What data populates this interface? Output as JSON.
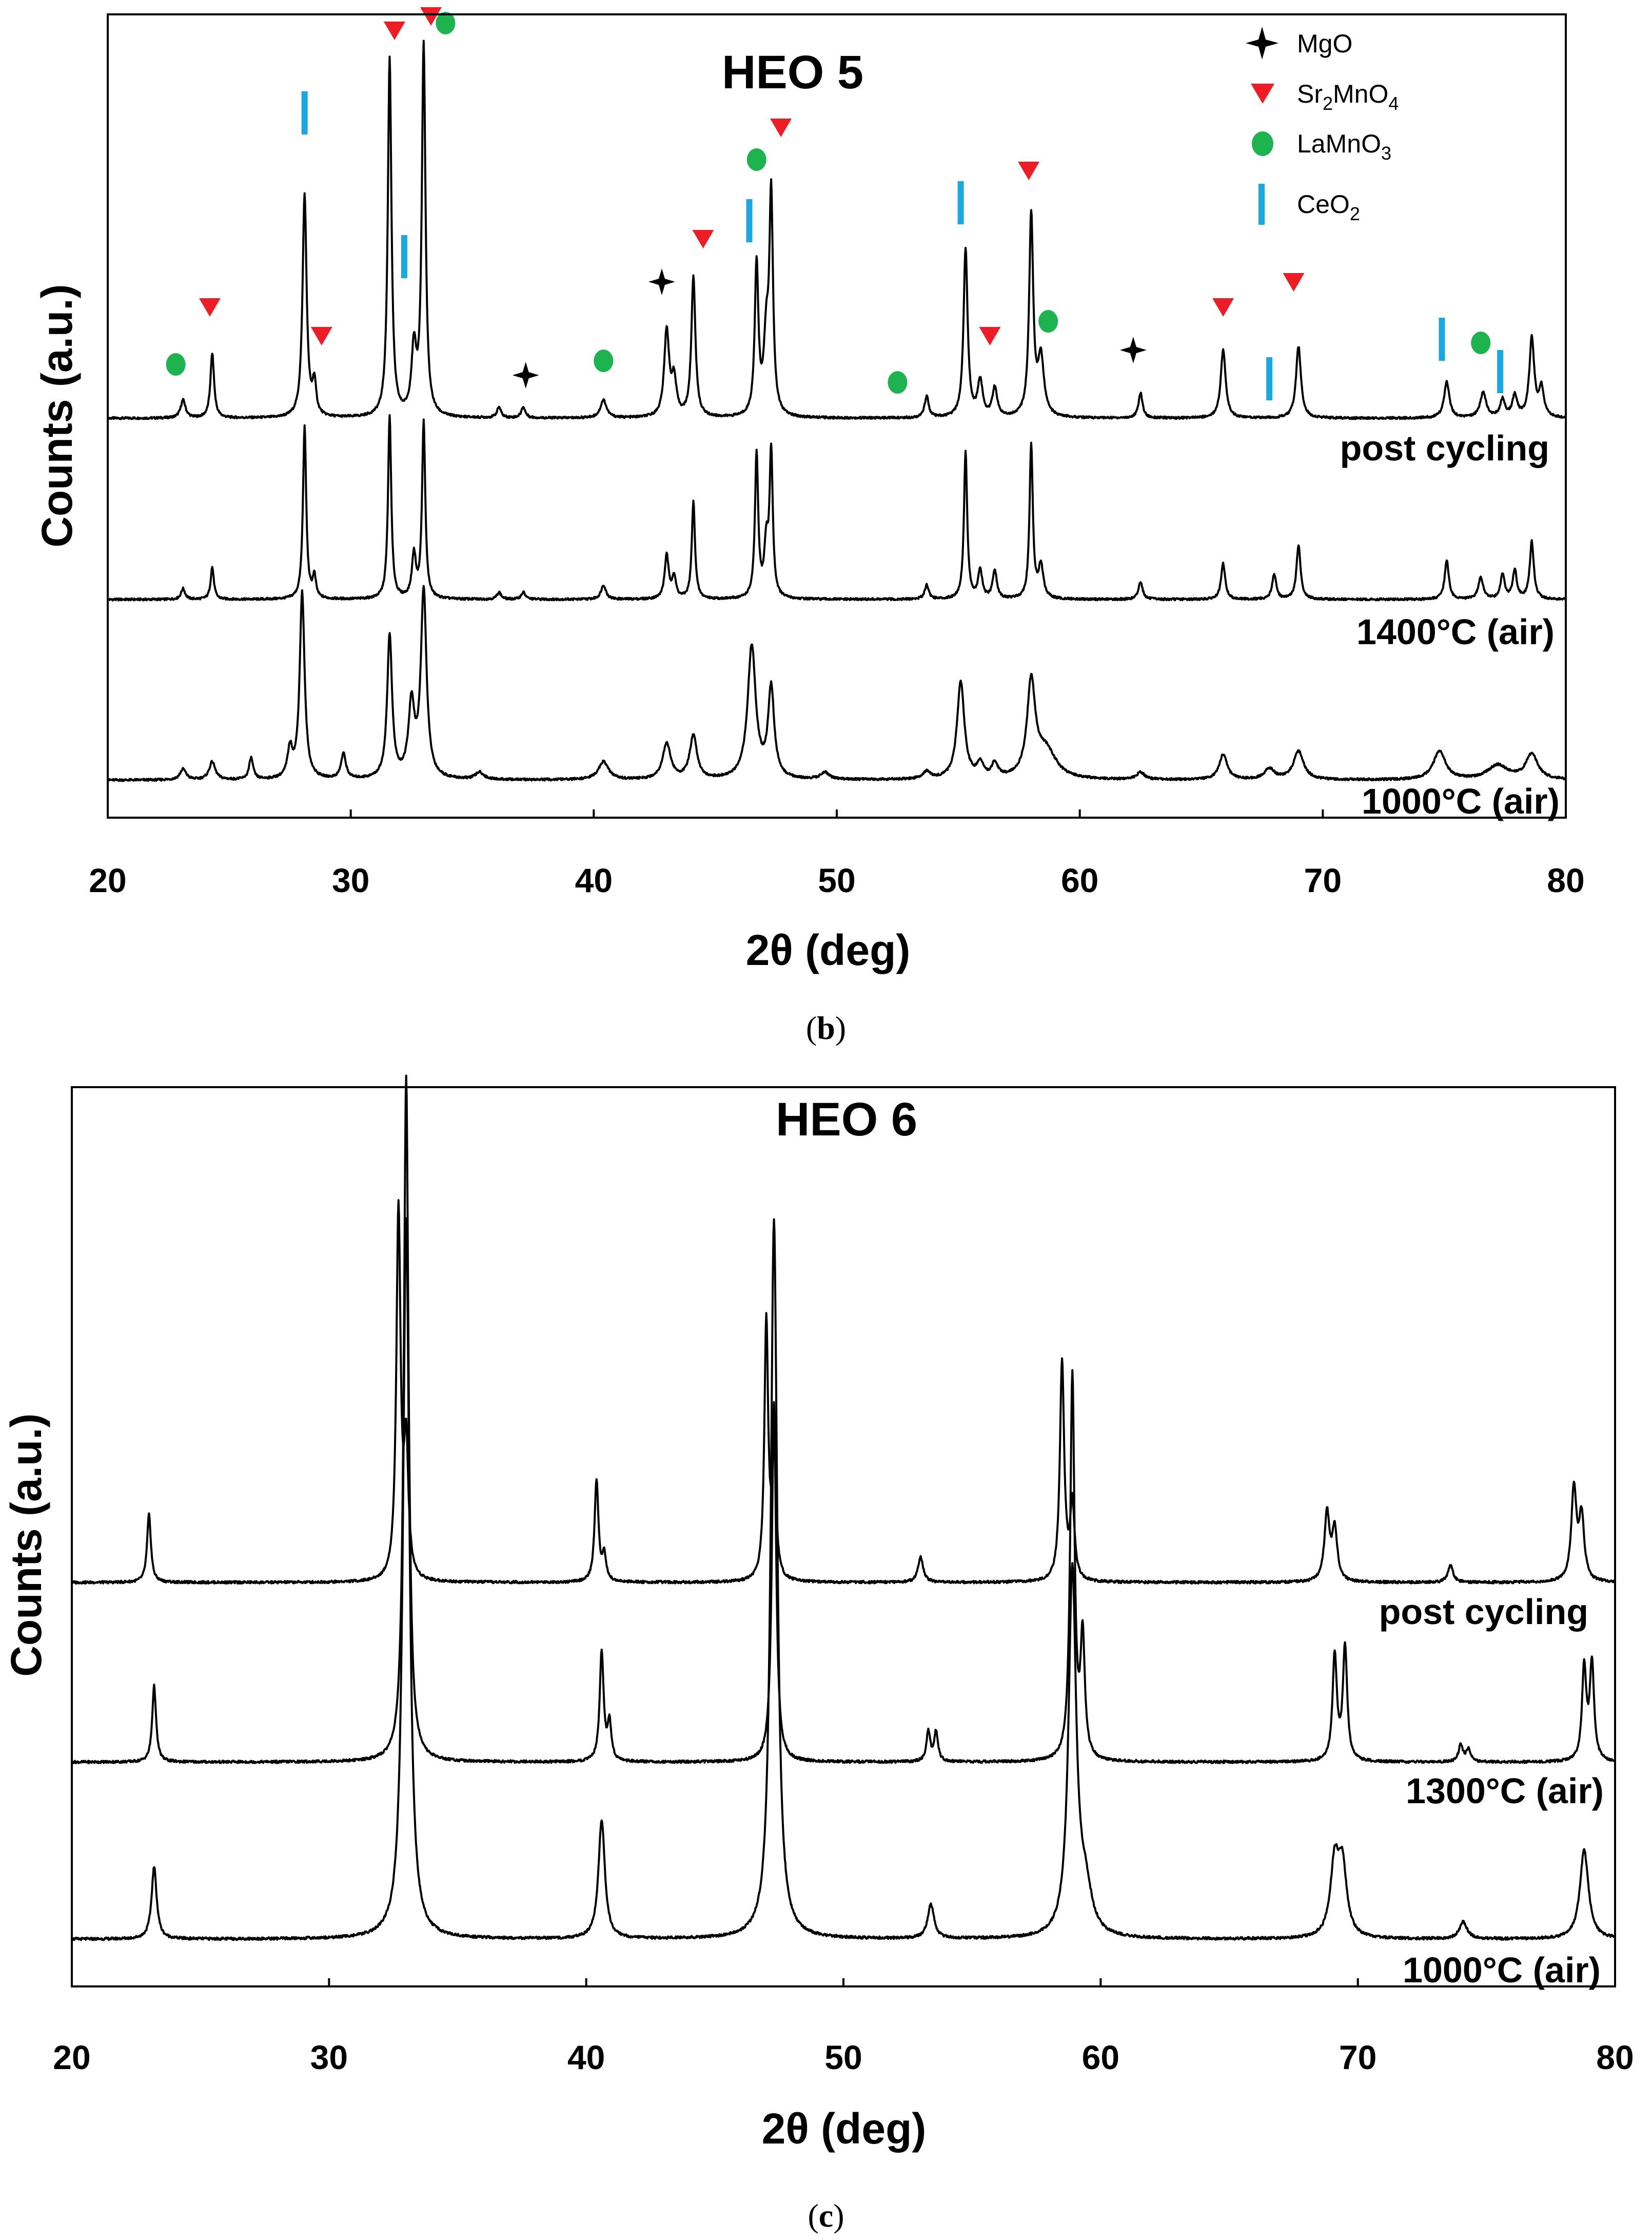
{
  "colors": {
    "sr2mno4": "#ee1c24",
    "lamno3": "#1db34f",
    "ceo2": "#1ba7e0",
    "mgo": "#000000",
    "line": "#000000"
  },
  "chart_data": [
    {
      "type": "line",
      "title": "HEO 5",
      "xlabel": "2θ (deg)",
      "ylabel": "Counts (a.u.)",
      "xlim": [
        20,
        80
      ],
      "xticks": [
        20,
        30,
        40,
        50,
        60,
        70,
        80
      ],
      "caption": {
        "open": "(",
        "letter": "b",
        "close": ")"
      },
      "legend": {
        "placement": "top-right",
        "entries": [
          {
            "marker": "star",
            "label": "MgO",
            "sub": "",
            "tail": ""
          },
          {
            "marker": "triangle",
            "label": "Sr",
            "sub": "2",
            "tail": "MnO",
            "sub2": "4"
          },
          {
            "marker": "circle",
            "label": "LaMnO",
            "sub": "3",
            "tail": ""
          },
          {
            "marker": "bar",
            "label": "CeO",
            "sub": "2",
            "tail": ""
          }
        ]
      },
      "series": [
        {
          "name": "post cycling",
          "peaks": [
            [
              23.1,
              0.05,
              0.12
            ],
            [
              24.3,
              0.18,
              0.09
            ],
            [
              28.1,
              0.62,
              0.1
            ],
            [
              28.5,
              0.09,
              0.09
            ],
            [
              31.6,
              1.0,
              0.09
            ],
            [
              32.6,
              0.18,
              0.12
            ],
            [
              33.0,
              1.03,
              0.09
            ],
            [
              36.1,
              0.03,
              0.1
            ],
            [
              37.1,
              0.03,
              0.1
            ],
            [
              40.4,
              0.05,
              0.15
            ],
            [
              43.0,
              0.24,
              0.12
            ],
            [
              43.3,
              0.1,
              0.12
            ],
            [
              44.1,
              0.39,
              0.1
            ],
            [
              46.7,
              0.42,
              0.09
            ],
            [
              47.1,
              0.2,
              0.12
            ],
            [
              47.3,
              0.6,
              0.09
            ],
            [
              53.7,
              0.06,
              0.1
            ],
            [
              55.3,
              0.47,
              0.1
            ],
            [
              55.9,
              0.1,
              0.12
            ],
            [
              56.5,
              0.08,
              0.12
            ],
            [
              58.0,
              0.56,
              0.1
            ],
            [
              58.4,
              0.16,
              0.15
            ],
            [
              62.5,
              0.07,
              0.1
            ],
            [
              65.9,
              0.19,
              0.12
            ],
            [
              69.0,
              0.2,
              0.12
            ],
            [
              75.1,
              0.1,
              0.13
            ],
            [
              76.6,
              0.07,
              0.15
            ],
            [
              77.4,
              0.05,
              0.12
            ],
            [
              77.9,
              0.06,
              0.12
            ],
            [
              78.6,
              0.22,
              0.12
            ],
            [
              79.0,
              0.08,
              0.12
            ]
          ]
        },
        {
          "name": "1400°C (air)",
          "peaks": [
            [
              23.1,
              0.03,
              0.1
            ],
            [
              24.3,
              0.09,
              0.08
            ],
            [
              28.1,
              0.48,
              0.08
            ],
            [
              28.5,
              0.06,
              0.08
            ],
            [
              31.6,
              0.51,
              0.08
            ],
            [
              32.6,
              0.12,
              0.1
            ],
            [
              33.0,
              0.49,
              0.08
            ],
            [
              36.1,
              0.02,
              0.1
            ],
            [
              37.1,
              0.02,
              0.1
            ],
            [
              40.4,
              0.04,
              0.12
            ],
            [
              43.0,
              0.12,
              0.1
            ],
            [
              43.3,
              0.06,
              0.1
            ],
            [
              44.1,
              0.27,
              0.08
            ],
            [
              46.7,
              0.4,
              0.08
            ],
            [
              47.1,
              0.14,
              0.1
            ],
            [
              47.3,
              0.4,
              0.08
            ],
            [
              53.7,
              0.04,
              0.1
            ],
            [
              55.3,
              0.41,
              0.08
            ],
            [
              55.9,
              0.08,
              0.1
            ],
            [
              56.5,
              0.08,
              0.1
            ],
            [
              58.0,
              0.43,
              0.08
            ],
            [
              58.4,
              0.09,
              0.12
            ],
            [
              62.5,
              0.05,
              0.1
            ],
            [
              65.9,
              0.1,
              0.1
            ],
            [
              68.0,
              0.07,
              0.1
            ],
            [
              69.0,
              0.15,
              0.1
            ],
            [
              75.1,
              0.11,
              0.1
            ],
            [
              76.5,
              0.06,
              0.12
            ],
            [
              77.4,
              0.07,
              0.1
            ],
            [
              77.9,
              0.08,
              0.1
            ],
            [
              78.6,
              0.16,
              0.1
            ]
          ]
        },
        {
          "name": "1000°C (air)",
          "peaks": [
            [
              23.1,
              0.03,
              0.15
            ],
            [
              24.3,
              0.05,
              0.15
            ],
            [
              25.9,
              0.06,
              0.1
            ],
            [
              27.5,
              0.08,
              0.12
            ],
            [
              28.0,
              0.52,
              0.12
            ],
            [
              29.7,
              0.07,
              0.12
            ],
            [
              31.6,
              0.4,
              0.12
            ],
            [
              32.5,
              0.2,
              0.15
            ],
            [
              33.0,
              0.52,
              0.14
            ],
            [
              35.3,
              0.02,
              0.2
            ],
            [
              40.4,
              0.05,
              0.25
            ],
            [
              43.0,
              0.1,
              0.2
            ],
            [
              44.1,
              0.12,
              0.18
            ],
            [
              46.5,
              0.37,
              0.2
            ],
            [
              47.3,
              0.25,
              0.15
            ],
            [
              49.5,
              0.02,
              0.2
            ],
            [
              53.7,
              0.02,
              0.2
            ],
            [
              55.1,
              0.27,
              0.18
            ],
            [
              55.9,
              0.04,
              0.15
            ],
            [
              56.5,
              0.04,
              0.15
            ],
            [
              58.0,
              0.26,
              0.2
            ],
            [
              58.6,
              0.08,
              0.5
            ],
            [
              62.5,
              0.02,
              0.2
            ],
            [
              65.9,
              0.07,
              0.2
            ],
            [
              67.8,
              0.03,
              0.25
            ],
            [
              69.0,
              0.08,
              0.25
            ],
            [
              74.8,
              0.08,
              0.3
            ],
            [
              77.2,
              0.04,
              0.5
            ],
            [
              78.6,
              0.07,
              0.3
            ]
          ]
        }
      ],
      "markers": [
        {
          "phase": "Sr2MnO4",
          "x": 24.2,
          "level": 0.31
        },
        {
          "phase": "Sr2MnO4",
          "x": 28.8,
          "level": 0.23
        },
        {
          "phase": "Sr2MnO4",
          "x": 31.8,
          "level": 1.08
        },
        {
          "phase": "Sr2MnO4",
          "x": 33.3,
          "level": 1.12
        },
        {
          "phase": "Sr2MnO4",
          "x": 44.5,
          "level": 0.5
        },
        {
          "phase": "Sr2MnO4",
          "x": 47.7,
          "level": 0.81
        },
        {
          "phase": "Sr2MnO4",
          "x": 56.3,
          "level": 0.23
        },
        {
          "phase": "Sr2MnO4",
          "x": 57.9,
          "level": 0.69
        },
        {
          "phase": "Sr2MnO4",
          "x": 65.9,
          "level": 0.31
        },
        {
          "phase": "Sr2MnO4",
          "x": 68.8,
          "level": 0.38
        },
        {
          "phase": "LaMnO3",
          "x": 22.8,
          "level": 0.15
        },
        {
          "phase": "LaMnO3",
          "x": 33.9,
          "level": 1.1
        },
        {
          "phase": "LaMnO3",
          "x": 40.4,
          "level": 0.16
        },
        {
          "phase": "LaMnO3",
          "x": 46.7,
          "level": 0.72
        },
        {
          "phase": "LaMnO3",
          "x": 52.5,
          "level": 0.1
        },
        {
          "phase": "LaMnO3",
          "x": 58.7,
          "level": 0.27
        },
        {
          "phase": "LaMnO3",
          "x": 76.5,
          "level": 0.21
        },
        {
          "phase": "MgO",
          "x": 37.2,
          "level": 0.12
        },
        {
          "phase": "MgO",
          "x": 42.8,
          "level": 0.38
        },
        {
          "phase": "MgO",
          "x": 62.2,
          "level": 0.19
        },
        {
          "phase": "CeO2",
          "x": 28.1,
          "level": 0.85
        },
        {
          "phase": "CeO2",
          "x": 32.2,
          "level": 0.45
        },
        {
          "phase": "CeO2",
          "x": 46.4,
          "level": 0.55
        },
        {
          "phase": "CeO2",
          "x": 55.1,
          "level": 0.6
        },
        {
          "phase": "CeO2",
          "x": 67.8,
          "level": 0.11
        },
        {
          "phase": "CeO2",
          "x": 74.9,
          "level": 0.22
        },
        {
          "phase": "CeO2",
          "x": 77.3,
          "level": 0.13
        }
      ]
    },
    {
      "type": "line",
      "title": "HEO 6",
      "xlabel": "2θ (deg)",
      "ylabel": "Counts (a.u.)",
      "xlim": [
        20,
        80
      ],
      "xticks": [
        20,
        30,
        40,
        50,
        60,
        70,
        80
      ],
      "caption": {
        "open": "(",
        "letter": "c",
        "close": ")"
      },
      "series": [
        {
          "name": "post cycling",
          "peaks": [
            [
              23.0,
              0.16,
              0.09
            ],
            [
              32.7,
              0.87,
              0.1
            ],
            [
              33.0,
              0.3,
              0.1
            ],
            [
              40.4,
              0.24,
              0.09
            ],
            [
              40.7,
              0.06,
              0.09
            ],
            [
              47.0,
              0.61,
              0.09
            ],
            [
              47.3,
              0.3,
              0.09
            ],
            [
              53.0,
              0.06,
              0.12
            ],
            [
              58.5,
              0.52,
              0.1
            ],
            [
              58.9,
              0.18,
              0.1
            ],
            [
              68.8,
              0.16,
              0.12
            ],
            [
              69.1,
              0.12,
              0.12
            ],
            [
              73.6,
              0.04,
              0.12
            ],
            [
              78.4,
              0.22,
              0.12
            ],
            [
              78.7,
              0.15,
              0.12
            ]
          ]
        },
        {
          "name": "1300°C (air)",
          "peaks": [
            [
              23.2,
              0.18,
              0.09
            ],
            [
              33.0,
              1.62,
              0.11
            ],
            [
              40.6,
              0.26,
              0.09
            ],
            [
              40.9,
              0.09,
              0.09
            ],
            [
              47.3,
              0.85,
              0.1
            ],
            [
              53.3,
              0.07,
              0.09
            ],
            [
              53.6,
              0.07,
              0.09
            ],
            [
              58.9,
              0.91,
              0.1
            ],
            [
              59.3,
              0.28,
              0.1
            ],
            [
              69.1,
              0.25,
              0.1
            ],
            [
              69.5,
              0.27,
              0.1
            ],
            [
              74.0,
              0.04,
              0.1
            ],
            [
              74.3,
              0.03,
              0.1
            ],
            [
              78.8,
              0.22,
              0.1
            ],
            [
              79.1,
              0.23,
              0.1
            ]
          ]
        },
        {
          "name": "1000°C (air)",
          "peaks": [
            [
              23.2,
              0.17,
              0.12
            ],
            [
              33.0,
              1.7,
              0.15
            ],
            [
              40.6,
              0.28,
              0.15
            ],
            [
              47.3,
              1.7,
              0.15
            ],
            [
              53.4,
              0.08,
              0.15
            ],
            [
              58.9,
              0.86,
              0.18
            ],
            [
              59.4,
              0.1,
              0.3
            ],
            [
              69.1,
              0.17,
              0.2
            ],
            [
              69.4,
              0.16,
              0.2
            ],
            [
              74.1,
              0.04,
              0.18
            ],
            [
              78.8,
              0.21,
              0.2
            ]
          ]
        }
      ]
    }
  ]
}
